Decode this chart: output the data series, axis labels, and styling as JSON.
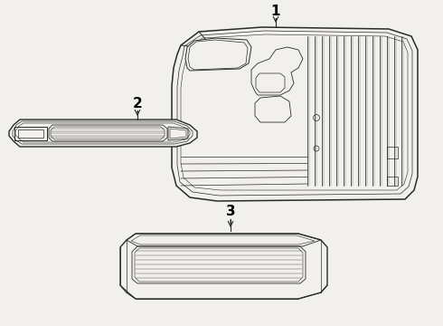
{
  "background_color": "#f2f0ec",
  "line_color": "#2a2a2a",
  "label_color": "#000000",
  "label_fontsize": 11,
  "figsize": [
    4.9,
    3.6
  ],
  "dpi": 100,
  "part1_label": "1",
  "part2_label": "2",
  "part3_label": "3"
}
